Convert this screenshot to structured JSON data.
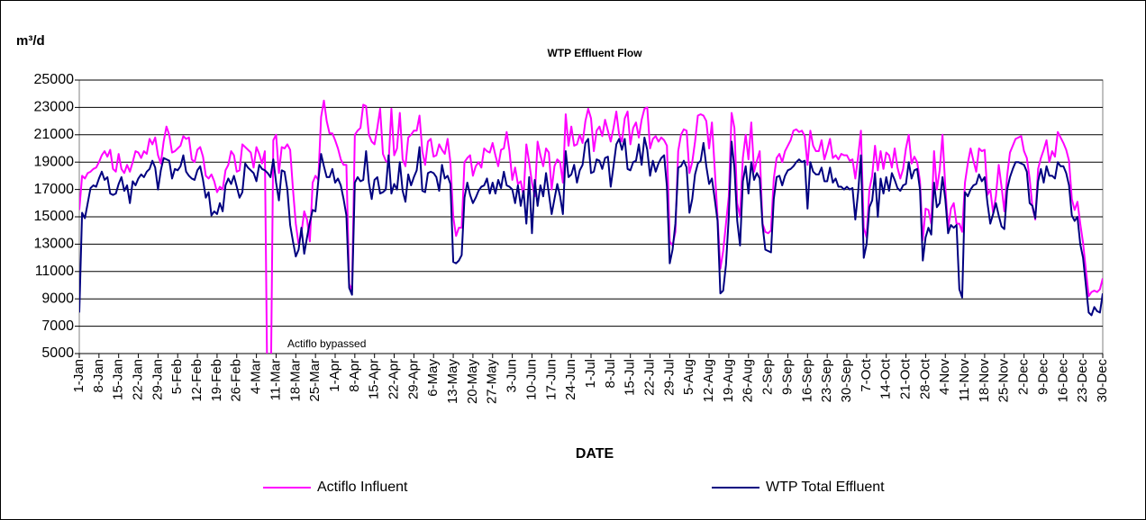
{
  "chart_data": {
    "type": "line",
    "title": "WTP Effluent Flow",
    "y_label": "m³/d",
    "x_label": "DATE",
    "annotation": "Actiflo bypassed",
    "legend": "bottom",
    "grid": true,
    "ylim": [
      5000,
      25000
    ],
    "yticks": [
      5000,
      7000,
      9000,
      11000,
      13000,
      15000,
      17000,
      19000,
      21000,
      23000,
      25000
    ],
    "categories": [
      "1-Jan",
      null,
      null,
      null,
      null,
      null,
      null,
      "8-Jan",
      null,
      null,
      null,
      null,
      null,
      null,
      "15-Jan",
      null,
      null,
      null,
      null,
      null,
      null,
      "22-Jan",
      null,
      null,
      null,
      null,
      null,
      null,
      "29-Jan",
      null,
      null,
      null,
      null,
      null,
      null,
      "5-Feb",
      null,
      null,
      null,
      null,
      null,
      null,
      "12-Feb",
      null,
      null,
      null,
      null,
      null,
      null,
      "19-Feb",
      null,
      null,
      null,
      null,
      null,
      null,
      "26-Feb",
      null,
      null,
      null,
      null,
      null,
      null,
      "4-Mar",
      null,
      null,
      null,
      null,
      null,
      null,
      "11-Mar",
      null,
      null,
      null,
      null,
      null,
      null,
      "18-Mar",
      null,
      null,
      null,
      null,
      null,
      null,
      "25-Mar",
      null,
      null,
      null,
      null,
      null,
      null,
      "1-Apr",
      null,
      null,
      null,
      null,
      null,
      null,
      "8-Apr",
      null,
      null,
      null,
      null,
      null,
      null,
      "15-Apr",
      null,
      null,
      null,
      null,
      null,
      null,
      "22-Apr",
      null,
      null,
      null,
      null,
      null,
      null,
      "29-Apr",
      null,
      null,
      null,
      null,
      null,
      null,
      "6-May",
      null,
      null,
      null,
      null,
      null,
      null,
      "13-May",
      null,
      null,
      null,
      null,
      null,
      null,
      "20-May",
      null,
      null,
      null,
      null,
      null,
      null,
      "27-May",
      null,
      null,
      null,
      null,
      null,
      null,
      "3-Jun",
      null,
      null,
      null,
      null,
      null,
      null,
      "10-Jun",
      null,
      null,
      null,
      null,
      null,
      null,
      "17-Jun",
      null,
      null,
      null,
      null,
      null,
      null,
      "24-Jun",
      null,
      null,
      null,
      null,
      null,
      null,
      "1-Jul",
      null,
      null,
      null,
      null,
      null,
      null,
      "8-Jul",
      null,
      null,
      null,
      null,
      null,
      null,
      "15-Jul",
      null,
      null,
      null,
      null,
      null,
      null,
      "22-Jul",
      null,
      null,
      null,
      null,
      null,
      null,
      "29-Jul",
      null,
      null,
      null,
      null,
      null,
      null,
      "5-Aug",
      null,
      null,
      null,
      null,
      null,
      null,
      "12-Aug",
      null,
      null,
      null,
      null,
      null,
      null,
      "19-Aug",
      null,
      null,
      null,
      null,
      null,
      null,
      "26-Aug",
      null,
      null,
      null,
      null,
      null,
      null,
      "2-Sep",
      null,
      null,
      null,
      null,
      null,
      null,
      "9-Sep",
      null,
      null,
      null,
      null,
      null,
      null,
      "16-Sep",
      null,
      null,
      null,
      null,
      null,
      null,
      "23-Sep",
      null,
      null,
      null,
      null,
      null,
      null,
      "30-Sep",
      null,
      null,
      null,
      null,
      null,
      null,
      "7-Oct",
      null,
      null,
      null,
      null,
      null,
      null,
      "14-Oct",
      null,
      null,
      null,
      null,
      null,
      null,
      "21-Oct",
      null,
      null,
      null,
      null,
      null,
      null,
      "28-Oct",
      null,
      null,
      null,
      null,
      null,
      null,
      "4-Nov",
      null,
      null,
      null,
      null,
      null,
      null,
      "11-Nov",
      null,
      null,
      null,
      null,
      null,
      null,
      "18-Nov",
      null,
      null,
      null,
      null,
      null,
      null,
      "25-Nov",
      null,
      null,
      null,
      null,
      null,
      null,
      "2-Dec",
      null,
      null,
      null,
      null,
      null,
      null,
      "9-Dec",
      null,
      null,
      null,
      null,
      null,
      null,
      "16-Dec",
      null,
      null,
      null,
      null,
      null,
      null,
      "23-Dec",
      null,
      null,
      null,
      null,
      null,
      null,
      "30-Dec"
    ],
    "series": [
      {
        "name": "Actiflo Influent",
        "color": "#ff00ff",
        "values": [
          15500,
          18000,
          17800,
          18200,
          18300,
          18500,
          18600,
          19000,
          19500,
          19800,
          19400,
          19900,
          18500,
          18300,
          19600,
          18500,
          18200,
          18800,
          18300,
          19000,
          19800,
          19700,
          19300,
          19800,
          19600,
          20700,
          20300,
          20800,
          19500,
          18900,
          20500,
          21600,
          21000,
          19700,
          19800,
          20000,
          20200,
          20900,
          20700,
          20800,
          19200,
          19000,
          19900,
          20100,
          19400,
          18000,
          17800,
          18100,
          17600,
          16800,
          17200,
          17000,
          18400,
          18800,
          19800,
          19500,
          18300,
          18400,
          20300,
          20100,
          19900,
          19700,
          18600,
          20100,
          19600,
          18900,
          19800,
          0,
          0,
          20600,
          21000,
          18200,
          20100,
          20000,
          20300,
          19900,
          17000,
          14500,
          13000,
          13800,
          15400,
          14800,
          13200,
          17500,
          18000,
          17700,
          22300,
          23500,
          22000,
          21100,
          21100,
          20600,
          20000,
          19200,
          18800,
          18800,
          10100,
          9600,
          21000,
          21300,
          21500,
          23200,
          23100,
          21000,
          20500,
          20300,
          21500,
          22900,
          19600,
          19100,
          18900,
          22900,
          19500,
          20000,
          22600,
          19200,
          18700,
          20800,
          21000,
          21300,
          21300,
          22400,
          19800,
          18800,
          20500,
          20700,
          19400,
          19500,
          20300,
          19900,
          19600,
          20700,
          19000,
          15000,
          13600,
          14200,
          14200,
          19000,
          19300,
          19500,
          18000,
          18700,
          19000,
          18600,
          20000,
          19800,
          19700,
          20400,
          19500,
          18700,
          19900,
          20000,
          21200,
          19800,
          17700,
          18600,
          17400,
          17600,
          16500,
          20300,
          19000,
          17500,
          16500,
          20500,
          19500,
          18700,
          20000,
          19700,
          17000,
          18700,
          19200,
          19000,
          17500,
          22500,
          20200,
          21600,
          20200,
          20300,
          21000,
          20400,
          22000,
          22900,
          22200,
          19800,
          21300,
          21600,
          20900,
          22100,
          21300,
          20500,
          21500,
          22700,
          21000,
          20500,
          22200,
          22700,
          20300,
          21500,
          21900,
          20800,
          22100,
          22900,
          23000,
          20000,
          20700,
          20900,
          20500,
          20800,
          20600,
          20200,
          13200,
          12900,
          13900,
          19800,
          21000,
          21400,
          21300,
          18200,
          19000,
          20500,
          22400,
          22500,
          22400,
          22000,
          20000,
          21900,
          18500,
          15000,
          11200,
          12500,
          14500,
          16500,
          22600,
          21500,
          16000,
          15000,
          19300,
          21000,
          19200,
          21900,
          18300,
          19100,
          19800,
          14500,
          13900,
          13800,
          14000,
          17800,
          19300,
          19600,
          19000,
          19800,
          20200,
          20600,
          21300,
          21400,
          21200,
          21300,
          20900,
          18800,
          21300,
          20200,
          19800,
          19800,
          20600,
          19200,
          19900,
          20700,
          19300,
          19500,
          19200,
          19600,
          19500,
          19500,
          19100,
          19200,
          17800,
          19400,
          21300,
          14200,
          13500,
          17000,
          18000,
          20200,
          18400,
          19800,
          18500,
          19700,
          19500,
          18600,
          20000,
          18600,
          17800,
          18500,
          20000,
          21000,
          18900,
          19400,
          19000,
          17600,
          13300,
          15600,
          15500,
          14500,
          19800,
          17000,
          18400,
          21000,
          17200,
          14100,
          15600,
          16000,
          14500,
          14500,
          13900,
          17500,
          18900,
          20000,
          19100,
          18300,
          20000,
          19800,
          19900,
          16600,
          17000,
          15300,
          16500,
          18800,
          17200,
          15400,
          18000,
          19700,
          20200,
          20700,
          20800,
          20900,
          19800,
          19300,
          17800,
          15700,
          14800,
          18500,
          19300,
          19900,
          20600,
          19000,
          19800,
          19400,
          21200,
          20800,
          20400,
          19900,
          19100,
          16300,
          15500,
          16100,
          14500,
          13100,
          11100,
          9200,
          9500,
          9600,
          9500,
          9700,
          10500
        ]
      },
      {
        "name": "WTP Total Effluent",
        "color": "#000080",
        "values": [
          8000,
          15300,
          14900,
          16000,
          17100,
          17300,
          17200,
          17800,
          18300,
          17700,
          17900,
          16700,
          16600,
          16700,
          17400,
          17900,
          16900,
          17300,
          16000,
          17600,
          17300,
          17800,
          18100,
          17900,
          18300,
          18500,
          19100,
          18600,
          17000,
          18400,
          19300,
          19200,
          19100,
          17800,
          18500,
          18400,
          18700,
          19500,
          18300,
          18000,
          17800,
          17700,
          18400,
          18700,
          17700,
          16400,
          16800,
          15100,
          15400,
          15200,
          16000,
          15400,
          17300,
          17800,
          17400,
          18000,
          17200,
          16400,
          16800,
          18900,
          18600,
          18400,
          18200,
          17600,
          18800,
          18500,
          18400,
          18200,
          17900,
          19200,
          17500,
          16200,
          18400,
          18300,
          17000,
          14400,
          13200,
          12100,
          12600,
          14200,
          12300,
          13500,
          14600,
          15500,
          15400,
          17600,
          19600,
          18700,
          17900,
          17900,
          18500,
          17500,
          17800,
          17300,
          16300,
          15100,
          9800,
          9300,
          17500,
          17900,
          17600,
          17700,
          19800,
          17500,
          16300,
          17700,
          17900,
          16700,
          16800,
          17000,
          19500,
          16700,
          17400,
          17000,
          19000,
          16900,
          16100,
          18100,
          17300,
          17900,
          18400,
          20100,
          16900,
          16800,
          18200,
          18300,
          18200,
          17900,
          16900,
          18800,
          17800,
          18000,
          17400,
          11700,
          11600,
          11800,
          12200,
          16400,
          17500,
          16600,
          16000,
          16400,
          16900,
          17200,
          17300,
          17800,
          16700,
          17500,
          16700,
          17700,
          17100,
          18300,
          17300,
          17200,
          17000,
          16000,
          17300,
          15800,
          16900,
          14500,
          17900,
          13800,
          17700,
          15800,
          17300,
          16500,
          18200,
          16700,
          15200,
          16300,
          17400,
          16500,
          15200,
          19800,
          17900,
          18100,
          18800,
          17500,
          18400,
          18800,
          20400,
          20700,
          18200,
          18300,
          19200,
          19100,
          18500,
          19300,
          19400,
          17200,
          18700,
          20300,
          20700,
          19900,
          20700,
          18500,
          18400,
          19000,
          19100,
          20300,
          18800,
          20800,
          19900,
          18000,
          19100,
          18300,
          18900,
          19300,
          19500,
          17200,
          11600,
          12600,
          14500,
          18600,
          18700,
          19100,
          18600,
          15300,
          16300,
          18100,
          18900,
          19100,
          20400,
          18700,
          17400,
          17800,
          16300,
          14700,
          9400,
          9600,
          11500,
          15000,
          20500,
          18600,
          14700,
          12900,
          17600,
          18700,
          16700,
          19000,
          17700,
          18200,
          17800,
          14400,
          12600,
          12500,
          12400,
          16300,
          17900,
          18000,
          17300,
          18000,
          18400,
          18500,
          18700,
          19000,
          19200,
          19000,
          19100,
          15600,
          19000,
          18300,
          18100,
          18100,
          18600,
          17600,
          17600,
          18600,
          17500,
          17800,
          17200,
          17200,
          17000,
          17200,
          17000,
          17100,
          14800,
          16800,
          19500,
          12000,
          13000,
          15700,
          16200,
          18200,
          15000,
          17800,
          16700,
          17900,
          16900,
          18200,
          17700,
          17100,
          16900,
          17300,
          17400,
          19000,
          17800,
          18400,
          18500,
          17000,
          11800,
          13500,
          14200,
          13700,
          17500,
          15700,
          16000,
          17900,
          16300,
          13800,
          14400,
          14200,
          14400,
          9700,
          9100,
          16800,
          16500,
          17000,
          17300,
          17400,
          18100,
          17600,
          17900,
          16000,
          14500,
          15200,
          16000,
          15100,
          14300,
          14100,
          17000,
          17900,
          18500,
          19000,
          19000,
          18900,
          18800,
          18300,
          16000,
          15800,
          14900,
          17600,
          18500,
          17500,
          18700,
          18000,
          18000,
          17800,
          19000,
          18700,
          18700,
          18200,
          17300,
          15100,
          14700,
          15000,
          13000,
          12000,
          10000,
          8000,
          7800,
          8400,
          8100,
          8000,
          9400
        ]
      }
    ]
  }
}
